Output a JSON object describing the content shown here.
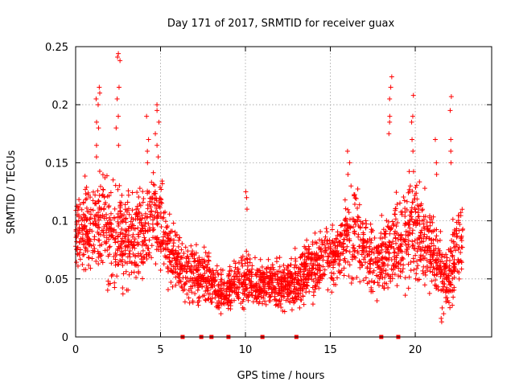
{
  "chart_data": {
    "type": "scatter",
    "title": "Day 171 of 2017, SRMTID for receiver guax",
    "xlabel": "GPS time / hours",
    "ylabel": "SRMTID / TECUs",
    "xlim": [
      0,
      24.5
    ],
    "ylim": [
      0,
      0.25
    ],
    "xticks": [
      0,
      5,
      10,
      15,
      20
    ],
    "xtick_labels": [
      "0",
      "5",
      "10",
      "15",
      "20"
    ],
    "yticks": [
      0,
      0.05,
      0.1,
      0.15,
      0.2,
      0.25
    ],
    "ytick_labels": [
      "0",
      "0.05",
      "0.1",
      "0.15",
      "0.2",
      "0.25"
    ],
    "grid": true,
    "marker": "+",
    "series_color": "#ff0000",
    "envelope": {
      "description": "approximate running median and spread of the SRMTID point cloud",
      "x": [
        0,
        0.5,
        1,
        1.5,
        2,
        2.5,
        3,
        3.5,
        4,
        4.5,
        5,
        5.5,
        6,
        6.5,
        7,
        7.5,
        8,
        8.5,
        9,
        9.5,
        10,
        10.5,
        11,
        11.5,
        12,
        12.5,
        13,
        13.5,
        14,
        14.5,
        15,
        15.5,
        16,
        16.5,
        17,
        17.5,
        18,
        18.5,
        19,
        19.5,
        20,
        20.5,
        21,
        21.5,
        22,
        22.5,
        22.8
      ],
      "median": [
        0.09,
        0.095,
        0.09,
        0.1,
        0.085,
        0.09,
        0.085,
        0.085,
        0.09,
        0.105,
        0.1,
        0.075,
        0.06,
        0.055,
        0.055,
        0.05,
        0.045,
        0.04,
        0.04,
        0.045,
        0.05,
        0.045,
        0.045,
        0.045,
        0.045,
        0.045,
        0.05,
        0.055,
        0.06,
        0.065,
        0.07,
        0.075,
        0.085,
        0.09,
        0.075,
        0.065,
        0.07,
        0.075,
        0.085,
        0.09,
        0.095,
        0.085,
        0.075,
        0.06,
        0.045,
        0.085,
        0.08
      ],
      "spread": [
        0.025,
        0.03,
        0.035,
        0.04,
        0.035,
        0.035,
        0.035,
        0.03,
        0.03,
        0.035,
        0.03,
        0.025,
        0.02,
        0.02,
        0.02,
        0.02,
        0.015,
        0.015,
        0.015,
        0.015,
        0.02,
        0.015,
        0.015,
        0.015,
        0.015,
        0.015,
        0.02,
        0.02,
        0.02,
        0.02,
        0.02,
        0.025,
        0.03,
        0.03,
        0.025,
        0.025,
        0.025,
        0.03,
        0.03,
        0.035,
        0.035,
        0.03,
        0.03,
        0.025,
        0.02,
        0.035,
        0.025
      ]
    },
    "spikes": [
      {
        "x": 1.3,
        "values": [
          0.2,
          0.205,
          0.21,
          0.215,
          0.185,
          0.18,
          0.165,
          0.155
        ]
      },
      {
        "x": 2.5,
        "values": [
          0.244,
          0.241,
          0.238,
          0.215,
          0.205,
          0.19,
          0.18,
          0.165
        ]
      },
      {
        "x": 4.8,
        "values": [
          0.2,
          0.195,
          0.185,
          0.175,
          0.165,
          0.155
        ]
      },
      {
        "x": 4.3,
        "values": [
          0.19,
          0.17,
          0.16,
          0.15
        ]
      },
      {
        "x": 18.5,
        "values": [
          0.224,
          0.215,
          0.205,
          0.19,
          0.185,
          0.175
        ]
      },
      {
        "x": 19.8,
        "values": [
          0.208,
          0.19,
          0.185,
          0.17,
          0.16
        ]
      },
      {
        "x": 22.1,
        "values": [
          0.207,
          0.195,
          0.17,
          0.16,
          0.15
        ]
      },
      {
        "x": 16.1,
        "values": [
          0.16,
          0.15,
          0.14,
          0.13
        ]
      },
      {
        "x": 21.2,
        "values": [
          0.17,
          0.15,
          0.14
        ]
      },
      {
        "x": 10.0,
        "values": [
          0.125,
          0.12,
          0.11
        ]
      }
    ],
    "dips": [
      {
        "x": 21.6,
        "values": [
          0.013,
          0.016,
          0.02,
          0.025
        ]
      },
      {
        "x": 8.5,
        "values": [
          0.02,
          0.025
        ]
      }
    ],
    "zero_markers_x": [
      6.3,
      7.4,
      8.0,
      9.0,
      11.0,
      13.0,
      18.0,
      19.0
    ]
  }
}
